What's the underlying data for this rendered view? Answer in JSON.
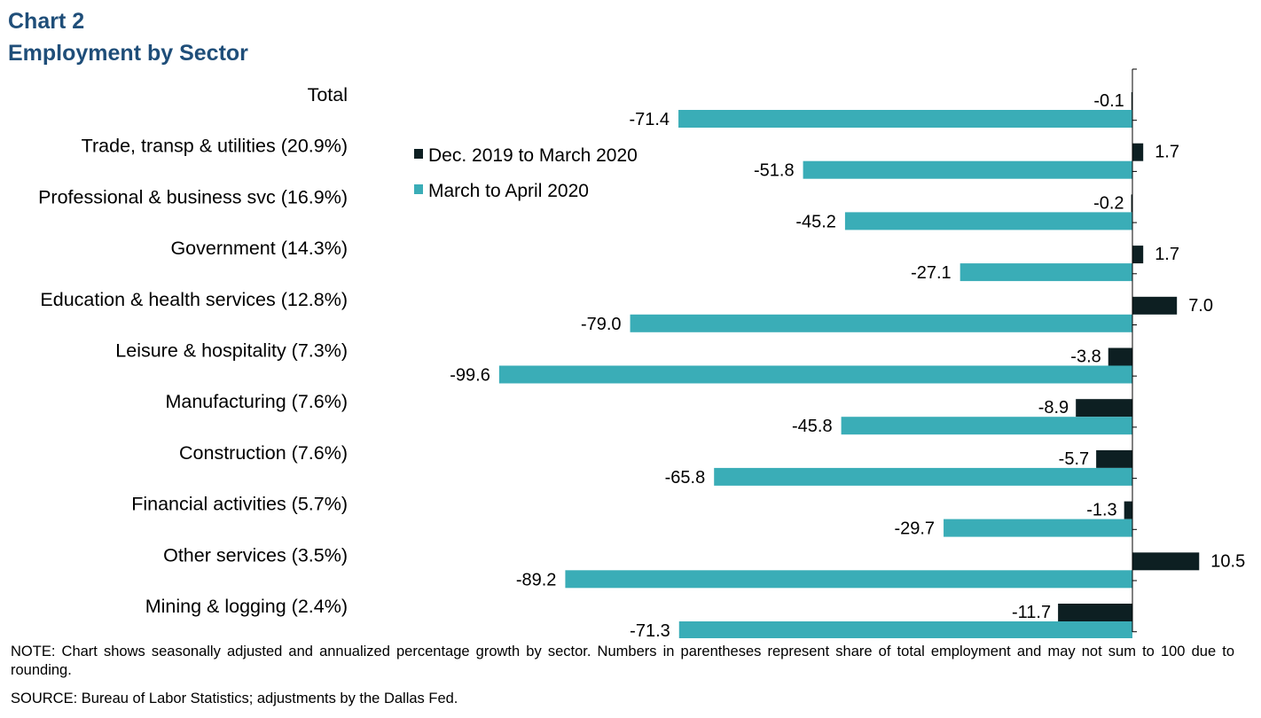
{
  "header": {
    "label": "Chart 2",
    "title": "Employment by Sector"
  },
  "colors": {
    "title": "#1f4e79",
    "series_dec_mar": "#0d1f22",
    "series_mar_apr": "#3aadb7"
  },
  "chart_data": {
    "type": "bar",
    "orientation": "horizontal",
    "categories": [
      "Total",
      "Trade, transp & utilities (20.9%)",
      "Professional & business svc (16.9%)",
      "Government (14.3%)",
      "Education & health services (12.8%)",
      "Leisure & hospitality (7.3%)",
      "Manufacturing (7.6%)",
      "Construction (7.6%)",
      "Financial activities (5.7%)",
      "Other services (3.5%)",
      "Mining & logging (2.4%)"
    ],
    "series": [
      {
        "name": "Dec. 2019 to March 2020",
        "color": "#0d1f22",
        "values": [
          -0.1,
          1.7,
          -0.2,
          1.7,
          7.0,
          -3.8,
          -8.9,
          -5.7,
          -1.3,
          10.5,
          -11.7
        ]
      },
      {
        "name": "March to April 2020",
        "color": "#3aadb7",
        "values": [
          -71.4,
          -51.8,
          -45.2,
          -27.1,
          -79.0,
          -99.6,
          -45.8,
          -65.8,
          -29.7,
          -89.2,
          -71.3
        ]
      }
    ],
    "legend_position": "upper-left of plot",
    "grid": false
  },
  "footer": {
    "note": "NOTE: Chart shows seasonally adjusted and annualized  percentage growth by sector. Numbers in parentheses represent share of total employment and may not sum to 100 due to rounding.",
    "source": "SOURCE:  Bureau of Labor Statistics; adjustments by the Dallas Fed."
  }
}
